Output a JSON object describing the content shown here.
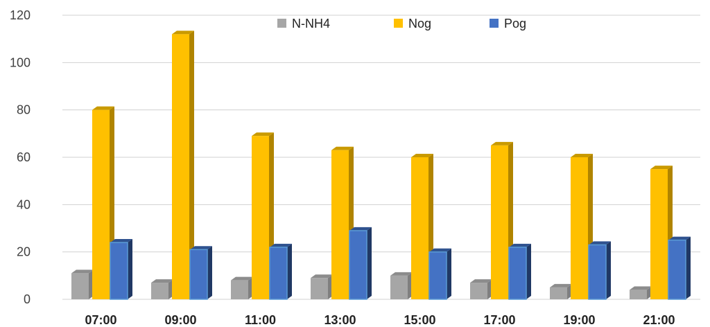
{
  "chart_data": {
    "type": "bar",
    "title": "",
    "xlabel": "",
    "ylabel": "",
    "ylim": [
      0,
      120
    ],
    "yticks": [
      0,
      20,
      40,
      60,
      80,
      100,
      120
    ],
    "ytick_labels": [
      "0",
      "20",
      "40",
      "60",
      "80",
      "100",
      "120"
    ],
    "grid": true,
    "legend_position": "top",
    "categories": [
      "07:00",
      "09:00",
      "11:00",
      "13:00",
      "15:00",
      "17:00",
      "19:00",
      "21:00"
    ],
    "series": [
      {
        "name": "N-NH4",
        "values": [
          11,
          7,
          8,
          9,
          10,
          7,
          5,
          4
        ],
        "color": "#a6a6a6",
        "side_color": "#7f7f7f",
        "top_color": "#8c8c8c"
      },
      {
        "name": "Nog",
        "values": [
          80,
          112,
          69,
          63,
          60,
          65,
          60,
          55
        ],
        "color": "#ffc000",
        "side_color": "#b08400",
        "top_color": "#c99a00"
      },
      {
        "name": "Pog",
        "values": [
          24,
          21,
          22,
          29,
          20,
          22,
          23,
          25
        ],
        "color": "#4472c4",
        "side_color": "#203864",
        "top_color": "#2f528f"
      }
    ]
  }
}
